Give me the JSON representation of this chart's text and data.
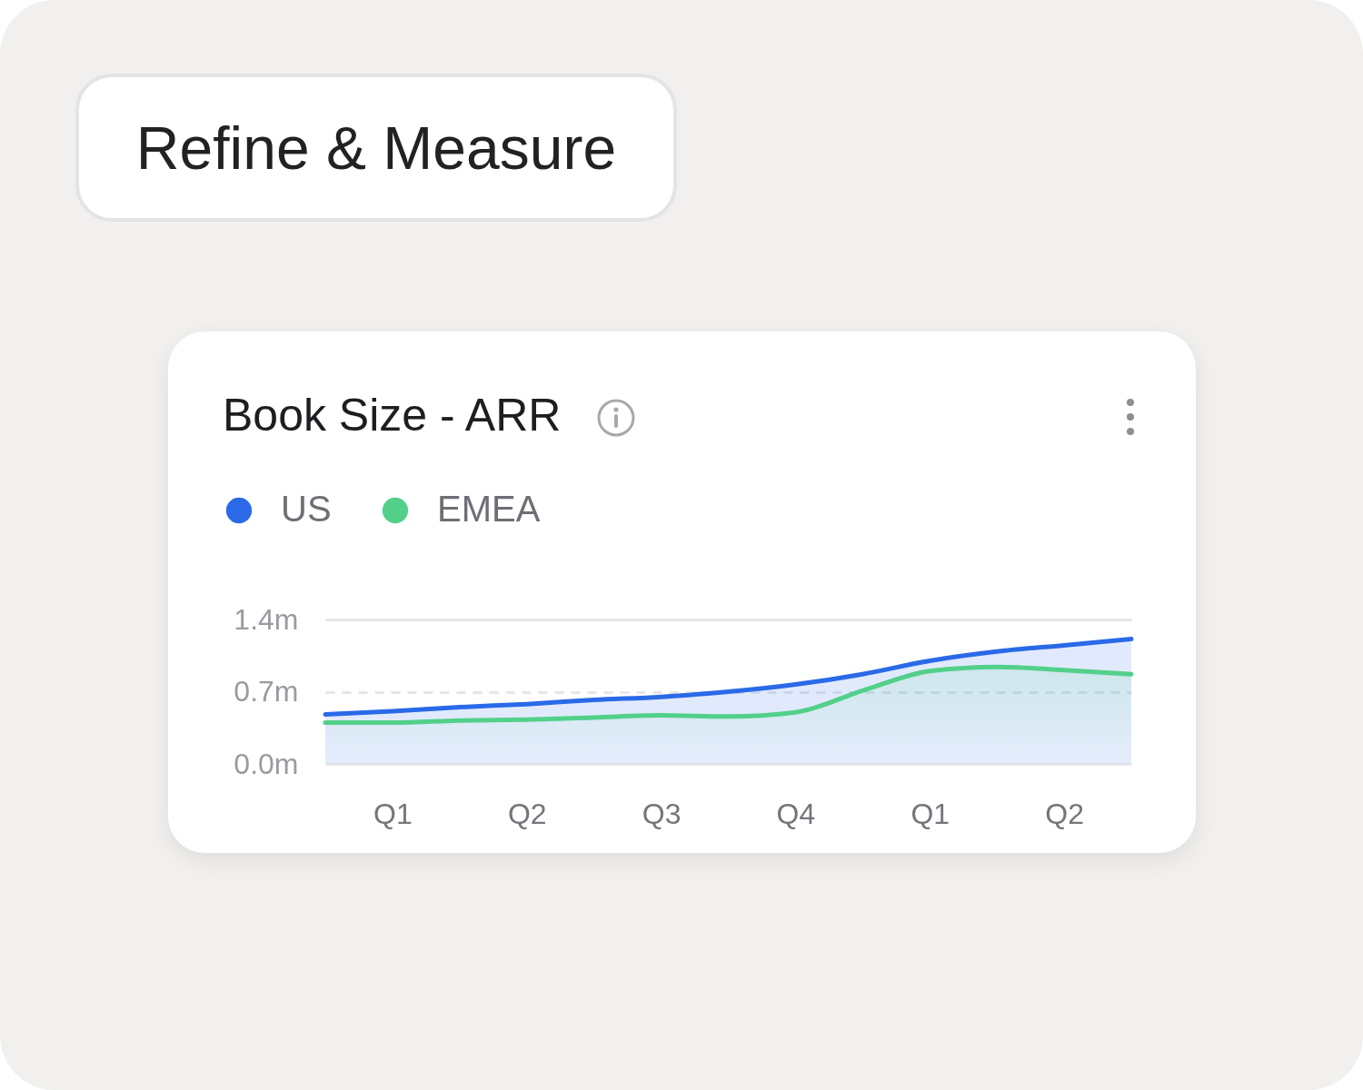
{
  "chart_data": {
    "type": "area",
    "title": "Book Size - ARR",
    "annotations": [
      "Refine & Measure"
    ],
    "categories": [
      null,
      "Q1",
      null,
      "Q2",
      null,
      "Q3",
      null,
      "Q4",
      null,
      "Q1",
      null,
      "Q2",
      null
    ],
    "series": [
      {
        "name": "US",
        "color": "#2a6ae8",
        "values": [
          0.48,
          0.51,
          0.55,
          0.58,
          0.62,
          0.65,
          0.7,
          0.77,
          0.87,
          1.0,
          1.09,
          1.15,
          1.21
        ]
      },
      {
        "name": "EMEA",
        "color": "#52d08a",
        "values": [
          0.4,
          0.4,
          0.42,
          0.43,
          0.45,
          0.47,
          0.46,
          0.5,
          0.71,
          0.9,
          0.94,
          0.91,
          0.87
        ]
      }
    ],
    "ylim": [
      0,
      1.4
    ],
    "yticks": [
      {
        "value": 0,
        "label": "0.0m"
      },
      {
        "value": 0.7,
        "label": "0.7m"
      },
      {
        "value": 1.4,
        "label": "1.4m"
      }
    ],
    "grid": "y",
    "legend": "top left"
  }
}
